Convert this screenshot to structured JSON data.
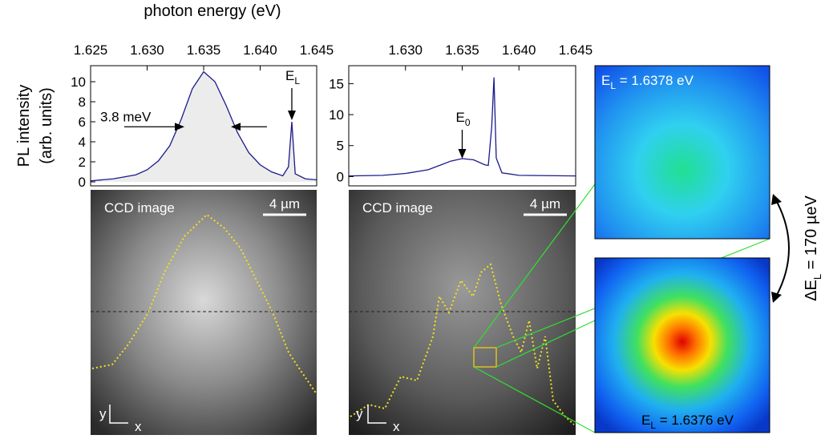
{
  "chart_data": [
    {
      "type": "line",
      "xlabel": "photon energy (eV)",
      "ylabel": "PL intensity",
      "ylabel_2": "(arb. units)",
      "xlim": [
        1.625,
        1.645
      ],
      "xticks": [
        1.625,
        {
          "value": 1.63,
          "label": "1.630"
        },
        1.635,
        {
          "value": 1.64,
          "label": "1.640"
        },
        1.645
      ],
      "ylim": [
        -0.4,
        11.6
      ],
      "yticks": [
        0,
        2,
        4,
        6,
        8,
        10
      ],
      "x": [
        1.625,
        1.627,
        1.629,
        1.63,
        1.631,
        1.632,
        1.633,
        1.634,
        1.635,
        1.636,
        1.637,
        1.638,
        1.639,
        1.64,
        1.641,
        1.642,
        1.6425,
        1.6428,
        1.6431,
        1.644,
        1.645
      ],
      "series": [
        {
          "color": "#1a1a8c",
          "fill": "#ececec",
          "values": [
            0.1,
            0.3,
            0.7,
            1.2,
            2.1,
            3.6,
            6.2,
            9.3,
            11,
            10,
            7.6,
            4.9,
            2.9,
            1.7,
            1.0,
            0.6,
            1.5,
            6.0,
            0.8,
            0.3,
            0.2
          ]
        }
      ],
      "fwhm_label": "3.8 meV",
      "peak_label": "E",
      "peak_label_sub": "L"
    },
    {
      "type": "line",
      "xlim": [
        1.625,
        1.645
      ],
      "xticks": [
        {
          "value": 1.63,
          "label": "1.630"
        },
        1.635,
        {
          "value": 1.64,
          "label": "1.640"
        },
        1.645
      ],
      "ylim": [
        -1.5,
        17.9
      ],
      "yticks": [
        0,
        5,
        10,
        15
      ],
      "x": [
        1.625,
        1.628,
        1.63,
        1.632,
        1.633,
        1.634,
        1.635,
        1.636,
        1.637,
        1.6373,
        1.6376,
        1.6378,
        1.638,
        1.6385,
        1.64,
        1.645
      ],
      "series": [
        {
          "color": "#1a1a8c",
          "values": [
            0.1,
            0.2,
            0.5,
            1.1,
            1.8,
            2.5,
            2.9,
            2.7,
            1.9,
            1.8,
            8,
            16,
            3,
            0.6,
            0.2,
            0.1
          ]
        }
      ],
      "peak_label": "E",
      "peak_label_sub": "0"
    }
  ],
  "ccd_label": "CCD image",
  "scale_bar": "4 µm",
  "axis_y": "y",
  "axis_x": "x",
  "maps": [
    {
      "label": "E",
      "sub": "L",
      "text": " = 1.6378 eV"
    },
    {
      "label": "E",
      "sub": "L",
      "text": " = 1.6376 eV"
    }
  ],
  "splitting": {
    "label": "ΔE",
    "sub": "L",
    "text": " = 170 µeV"
  }
}
